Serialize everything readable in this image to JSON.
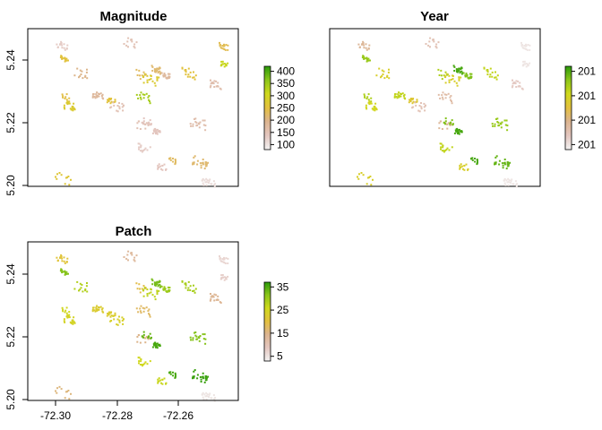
{
  "chart_data": [
    {
      "type": "heatmap",
      "title": "Magnitude",
      "xlim": [
        -72.31,
        -72.25
      ],
      "ylim": [
        5.2,
        5.25
      ],
      "yticks": [
        "5.20",
        "5.22",
        "5.24"
      ],
      "legend": {
        "ticks": [
          "100",
          "150",
          "200",
          "250",
          "300",
          "350",
          "400"
        ],
        "range": [
          80,
          430
        ],
        "placement": "right",
        "colors": [
          "#f2f2f2",
          "#e3c6bf",
          "#dcb48f",
          "#e3c040",
          "#cfd81c",
          "#8ac51a",
          "#2a9a0a"
        ]
      },
      "patches": [
        {
          "x": -72.3005,
          "y": 5.2449,
          "v": 130
        },
        {
          "x": -72.2997,
          "y": 5.2408,
          "v": 260
        },
        {
          "x": -72.2945,
          "y": 5.2362,
          "v": 200
        },
        {
          "x": -72.2995,
          "y": 5.2282,
          "v": 250
        },
        {
          "x": -72.2985,
          "y": 5.2258,
          "v": 280
        },
        {
          "x": -72.2902,
          "y": 5.2291,
          "v": 180
        },
        {
          "x": -72.2865,
          "y": 5.2274,
          "v": 260
        },
        {
          "x": -72.2844,
          "y": 5.2254,
          "v": 150
        },
        {
          "x": -72.2813,
          "y": 5.2459,
          "v": 150
        },
        {
          "x": -72.278,
          "y": 5.2356,
          "v": 230
        },
        {
          "x": -72.2735,
          "y": 5.2372,
          "v": 220
        },
        {
          "x": -72.2709,
          "y": 5.2354,
          "v": 180
        },
        {
          "x": -72.2752,
          "y": 5.234,
          "v": 280
        },
        {
          "x": -72.2774,
          "y": 5.2286,
          "v": 350
        },
        {
          "x": -72.2773,
          "y": 5.2194,
          "v": 150
        },
        {
          "x": -72.2764,
          "y": 5.2208,
          "v": 140
        },
        {
          "x": -72.2735,
          "y": 5.2176,
          "v": 140
        },
        {
          "x": -72.2618,
          "y": 5.2203,
          "v": 160
        },
        {
          "x": -72.2642,
          "y": 5.2361,
          "v": 260
        },
        {
          "x": -72.277,
          "y": 5.2122,
          "v": 130
        },
        {
          "x": -72.2722,
          "y": 5.2065,
          "v": 140
        },
        {
          "x": -72.2688,
          "y": 5.2083,
          "v": 230
        },
        {
          "x": -72.2611,
          "y": 5.2078,
          "v": 220
        },
        {
          "x": -72.2587,
          "y": 5.2013,
          "v": 110
        },
        {
          "x": -72.2567,
          "y": 5.2325,
          "v": 160
        },
        {
          "x": -72.2543,
          "y": 5.2446,
          "v": 240
        },
        {
          "x": -72.2542,
          "y": 5.239,
          "v": 320
        },
        {
          "x": -72.3002,
          "y": 5.2028,
          "v": 270
        }
      ]
    },
    {
      "type": "heatmap",
      "title": "Year",
      "xlim": [
        -72.31,
        -72.25
      ],
      "ylim": [
        5.2,
        5.25
      ],
      "legend": {
        "ticks": [
          "201",
          "201",
          "201",
          "201"
        ],
        "range": [
          0,
          1
        ],
        "placement": "right",
        "colors": [
          "#f2f2f2",
          "#e3c6bf",
          "#dcb48f",
          "#e3c040",
          "#cfd81c",
          "#8ac51a",
          "#2a9a0a"
        ]
      },
      "patches": [
        {
          "x": -72.3005,
          "y": 5.2449,
          "v": 0.3
        },
        {
          "x": -72.2997,
          "y": 5.2408,
          "v": 0.8
        },
        {
          "x": -72.2945,
          "y": 5.2362,
          "v": 0.6
        },
        {
          "x": -72.2995,
          "y": 5.2282,
          "v": 0.75
        },
        {
          "x": -72.2985,
          "y": 5.2258,
          "v": 0.65
        },
        {
          "x": -72.2902,
          "y": 5.2291,
          "v": 0.7
        },
        {
          "x": -72.2865,
          "y": 5.2274,
          "v": 0.55
        },
        {
          "x": -72.2844,
          "y": 5.2254,
          "v": 0.2
        },
        {
          "x": -72.2813,
          "y": 5.2459,
          "v": 0.2
        },
        {
          "x": -72.278,
          "y": 5.2356,
          "v": 0.75
        },
        {
          "x": -72.2735,
          "y": 5.2372,
          "v": 0.95
        },
        {
          "x": -72.2709,
          "y": 5.2354,
          "v": 0.85
        },
        {
          "x": -72.2752,
          "y": 5.234,
          "v": 0.6
        },
        {
          "x": -72.2774,
          "y": 5.2286,
          "v": 0.25
        },
        {
          "x": -72.2773,
          "y": 5.2194,
          "v": 0.3
        },
        {
          "x": -72.2764,
          "y": 5.2208,
          "v": 0.85
        },
        {
          "x": -72.2735,
          "y": 5.2176,
          "v": 0.95
        },
        {
          "x": -72.2618,
          "y": 5.2203,
          "v": 0.8
        },
        {
          "x": -72.2642,
          "y": 5.2361,
          "v": 0.7
        },
        {
          "x": -72.277,
          "y": 5.2122,
          "v": 0.7
        },
        {
          "x": -72.2722,
          "y": 5.2065,
          "v": 0.6
        },
        {
          "x": -72.2688,
          "y": 5.2083,
          "v": 0.95
        },
        {
          "x": -72.2611,
          "y": 5.2078,
          "v": 0.9
        },
        {
          "x": -72.2587,
          "y": 5.2013,
          "v": 0.05
        },
        {
          "x": -72.2567,
          "y": 5.2325,
          "v": 0.15
        },
        {
          "x": -72.2543,
          "y": 5.2446,
          "v": 0.05
        },
        {
          "x": -72.2542,
          "y": 5.239,
          "v": 0.05
        },
        {
          "x": -72.3002,
          "y": 5.2028,
          "v": 0.6
        }
      ]
    },
    {
      "type": "heatmap",
      "title": "Patch",
      "xlim": [
        -72.31,
        -72.25
      ],
      "ylim": [
        5.2,
        5.25
      ],
      "xticks": [
        "-72.30",
        "-72.28",
        "-72.26"
      ],
      "yticks": [
        "5.20",
        "5.22",
        "5.24"
      ],
      "legend": {
        "ticks": [
          "5",
          "15",
          "25",
          "35"
        ],
        "range": [
          0,
          38
        ],
        "placement": "right",
        "colors": [
          "#f2f2f2",
          "#e3c6bf",
          "#dcb48f",
          "#e3c040",
          "#cfd81c",
          "#8ac51a",
          "#2a9a0a"
        ]
      },
      "patches": [
        {
          "x": -72.3005,
          "y": 5.2449,
          "v": 20
        },
        {
          "x": -72.2997,
          "y": 5.2408,
          "v": 32
        },
        {
          "x": -72.2945,
          "y": 5.2362,
          "v": 28
        },
        {
          "x": -72.2995,
          "y": 5.2282,
          "v": 25
        },
        {
          "x": -72.2985,
          "y": 5.2258,
          "v": 24
        },
        {
          "x": -72.2902,
          "y": 5.2291,
          "v": 22
        },
        {
          "x": -72.2865,
          "y": 5.2274,
          "v": 22
        },
        {
          "x": -72.2844,
          "y": 5.2254,
          "v": 23
        },
        {
          "x": -72.2813,
          "y": 5.2459,
          "v": 11
        },
        {
          "x": -72.278,
          "y": 5.2356,
          "v": 18
        },
        {
          "x": -72.2735,
          "y": 5.2372,
          "v": 33
        },
        {
          "x": -72.2709,
          "y": 5.2354,
          "v": 30
        },
        {
          "x": -72.2752,
          "y": 5.234,
          "v": 27
        },
        {
          "x": -72.2774,
          "y": 5.2286,
          "v": 16
        },
        {
          "x": -72.2773,
          "y": 5.2194,
          "v": 13
        },
        {
          "x": -72.2764,
          "y": 5.2208,
          "v": 34
        },
        {
          "x": -72.2735,
          "y": 5.2176,
          "v": 36
        },
        {
          "x": -72.2618,
          "y": 5.2203,
          "v": 32
        },
        {
          "x": -72.2642,
          "y": 5.2361,
          "v": 29
        },
        {
          "x": -72.277,
          "y": 5.2122,
          "v": 25
        },
        {
          "x": -72.2722,
          "y": 5.2065,
          "v": 26
        },
        {
          "x": -72.2688,
          "y": 5.2083,
          "v": 36
        },
        {
          "x": -72.2611,
          "y": 5.2078,
          "v": 37
        },
        {
          "x": -72.2587,
          "y": 5.2013,
          "v": 2
        },
        {
          "x": -72.2567,
          "y": 5.2325,
          "v": 12
        },
        {
          "x": -72.2543,
          "y": 5.2446,
          "v": 4
        },
        {
          "x": -72.2542,
          "y": 5.239,
          "v": 5
        },
        {
          "x": -72.3002,
          "y": 5.2028,
          "v": 14
        }
      ]
    }
  ]
}
